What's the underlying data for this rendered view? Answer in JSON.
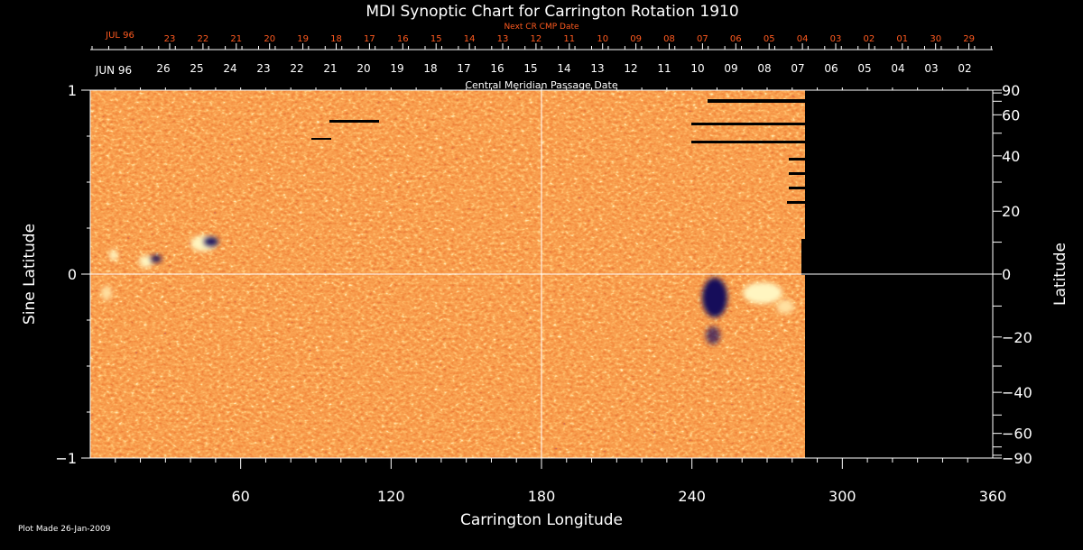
{
  "chart_data": {
    "type": "heatmap",
    "title": "MDI Synoptic Chart for Carrington Rotation 1910",
    "xlabel": "Carrington Longitude",
    "ylabel_left": "Sine Latitude",
    "ylabel_right": "Latitude",
    "xlim": [
      0,
      360
    ],
    "ylim": [
      -1,
      1
    ],
    "x_ticks": [
      60,
      120,
      180,
      240,
      300,
      360
    ],
    "y_ticks_left": [
      -1,
      0,
      1
    ],
    "y_ticks_right": [
      90,
      60,
      40,
      20,
      0,
      -20,
      -40,
      -60,
      -90
    ],
    "data_coverage_longitude": [
      0,
      285
    ],
    "meridian_label": "Central Meridian Passage Date",
    "cmp_axis": {
      "month_label": "JUN 96",
      "dates": [
        "26",
        "25",
        "24",
        "23",
        "22",
        "21",
        "20",
        "19",
        "18",
        "17",
        "16",
        "15",
        "14",
        "13",
        "12",
        "11",
        "10",
        "09",
        "08",
        "07",
        "06",
        "05",
        "04",
        "03",
        "02"
      ]
    },
    "next_cr_axis": {
      "label": "Next CR CMP Date",
      "month_label": "JUL 96",
      "dates": [
        "23",
        "22",
        "21",
        "20",
        "19",
        "18",
        "17",
        "16",
        "15",
        "14",
        "13",
        "12",
        "11",
        "10",
        "09",
        "08",
        "07",
        "06",
        "05",
        "04",
        "03",
        "02",
        "01",
        "30",
        "29"
      ]
    },
    "footer": "Plot Made 26-Jan-2009",
    "colors": {
      "background": "#000000",
      "field": "#e84a14",
      "positive": "#fff0b4",
      "negative": "#1a1060",
      "next_cr": "#ff5a1f",
      "text": "#ffffff"
    }
  }
}
